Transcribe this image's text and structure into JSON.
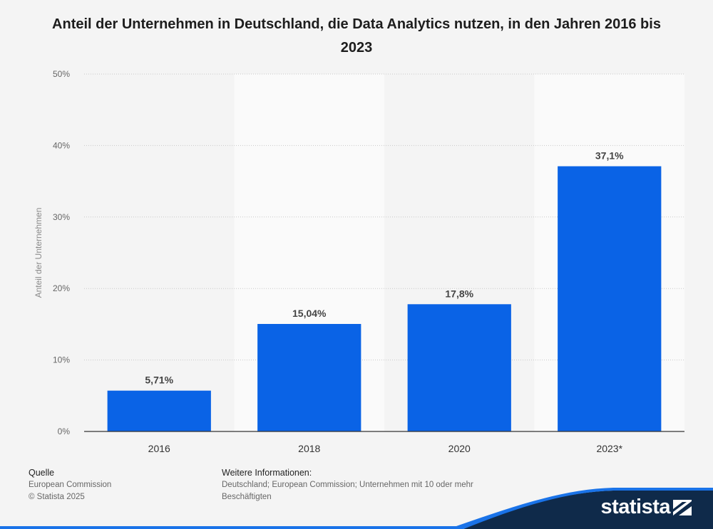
{
  "chart_data": {
    "type": "bar",
    "title": "Anteil der Unternehmen in Deutschland, die Data Analytics nutzen, in den Jahren 2016 bis 2023",
    "categories": [
      "2016",
      "2018",
      "2020",
      "2023*"
    ],
    "values": [
      5.71,
      15.04,
      17.8,
      37.1
    ],
    "data_labels": [
      "5,71%",
      "15,04%",
      "17,8%",
      "37,1%"
    ],
    "ylabel": "Anteil der Unternehmen",
    "xlabel": "",
    "ylim": [
      0,
      50
    ],
    "yticks": [
      0,
      10,
      20,
      30,
      40,
      50
    ],
    "ytick_labels": [
      "0%",
      "10%",
      "20%",
      "30%",
      "40%",
      "50%"
    ],
    "grid": true,
    "legend": "none",
    "bar_color": "#0a63e6"
  },
  "footer": {
    "source_heading": "Quelle",
    "source_lines": [
      "European Commission",
      "© Statista 2025"
    ],
    "info_heading": "Weitere Informationen:",
    "info_text": "Deutschland; European Commission; Unternehmen mit 10 oder mehr Beschäftigten"
  },
  "brand": {
    "logo_text": "statista",
    "logo_icon": "statista-logo-icon",
    "band_color": "#0f2a4a",
    "accent_color": "#1a73e8"
  }
}
